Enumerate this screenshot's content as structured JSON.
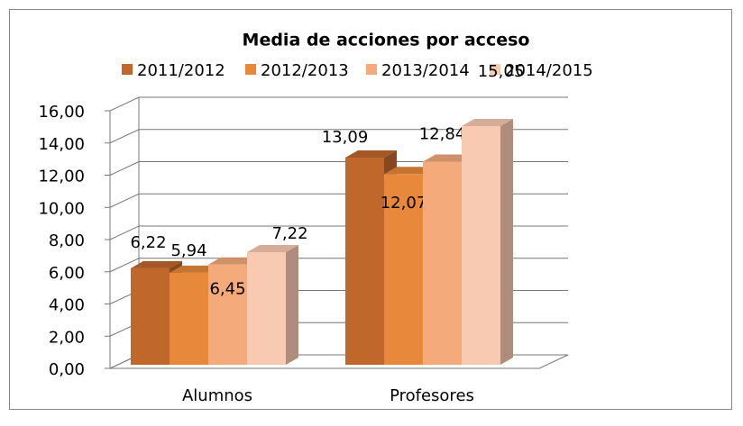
{
  "chart_data": {
    "type": "bar3d",
    "title": "Media de acciones por acceso",
    "categories": [
      "Alumnos",
      "Profesores"
    ],
    "series": [
      {
        "name": "2011/2012",
        "color": "#c0682c",
        "values": [
          6.22,
          13.09
        ],
        "value_labels": [
          "6,22",
          "13,09"
        ]
      },
      {
        "name": "2012/2013",
        "color": "#e8883a",
        "values": [
          5.94,
          12.07
        ],
        "value_labels": [
          "5,94",
          "12,07"
        ]
      },
      {
        "name": "2013/2014",
        "color": "#f4aa7a",
        "values": [
          6.45,
          12.84
        ],
        "value_labels": [
          "6,45",
          "12,84"
        ]
      },
      {
        "name": "2014/2015",
        "color": "#f9cab2",
        "values": [
          7.22,
          15.05
        ],
        "value_labels": [
          "7,22",
          "15,05"
        ]
      }
    ],
    "ylim": [
      0,
      16
    ],
    "yticks": [
      {
        "value": 0,
        "label": "0,00"
      },
      {
        "value": 2,
        "label": "2,00"
      },
      {
        "value": 4,
        "label": "4,00"
      },
      {
        "value": 6,
        "label": "6,00"
      },
      {
        "value": 8,
        "label": "8,00"
      },
      {
        "value": 10,
        "label": "10,00"
      },
      {
        "value": 12,
        "label": "12,00"
      },
      {
        "value": 14,
        "label": "14,00"
      },
      {
        "value": 16,
        "label": "16,00"
      }
    ],
    "grid": true,
    "legend": "top"
  }
}
